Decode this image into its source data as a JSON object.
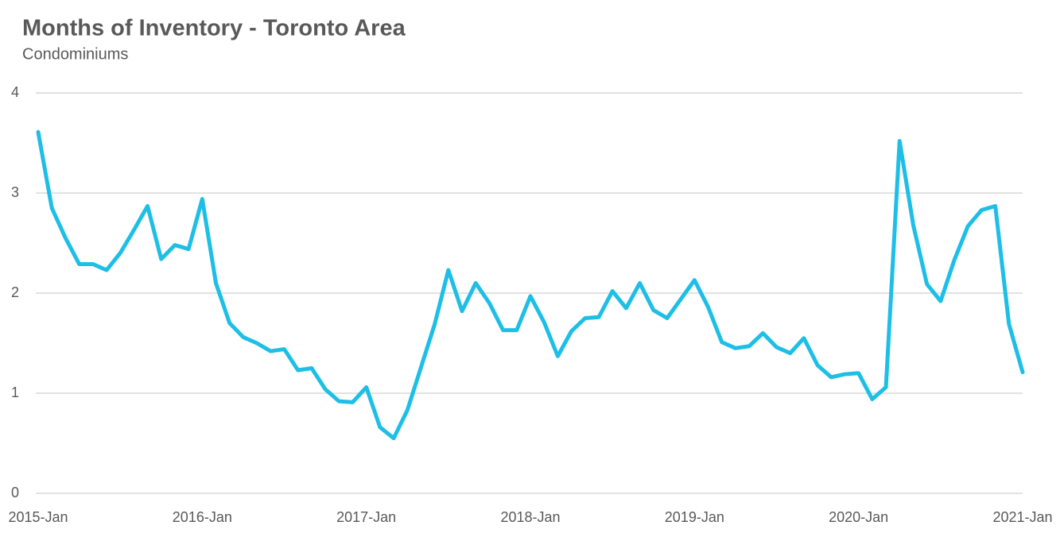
{
  "chart_data": {
    "type": "line",
    "title": "Months of Inventory - Toronto Area",
    "subtitle": "Condominiums",
    "categories": [
      "2015-Jan",
      null,
      null,
      null,
      null,
      null,
      null,
      null,
      null,
      null,
      null,
      null,
      "2016-Jan",
      null,
      null,
      null,
      null,
      null,
      null,
      null,
      null,
      null,
      null,
      null,
      "2017-Jan",
      null,
      null,
      null,
      null,
      null,
      null,
      null,
      null,
      null,
      null,
      null,
      "2018-Jan",
      null,
      null,
      null,
      null,
      null,
      null,
      null,
      null,
      null,
      null,
      null,
      "2019-Jan",
      null,
      null,
      null,
      null,
      null,
      null,
      null,
      null,
      null,
      null,
      null,
      "2020-Jan",
      null,
      null,
      null,
      null,
      null,
      null,
      null,
      null,
      null,
      null,
      null,
      "2021-Jan"
    ],
    "values": [
      3.61,
      2.85,
      2.55,
      2.29,
      2.29,
      2.23,
      2.4,
      2.63,
      2.87,
      2.34,
      2.48,
      2.44,
      2.94,
      2.1,
      1.7,
      1.56,
      1.5,
      1.42,
      1.44,
      1.23,
      1.25,
      1.04,
      0.92,
      0.91,
      1.06,
      0.66,
      0.55,
      0.83,
      1.26,
      1.69,
      2.23,
      1.82,
      2.1,
      1.9,
      1.63,
      1.63,
      1.97,
      1.71,
      1.37,
      1.62,
      1.75,
      1.76,
      2.02,
      1.85,
      2.1,
      1.83,
      1.75,
      1.94,
      2.13,
      1.86,
      1.51,
      1.45,
      1.47,
      1.6,
      1.46,
      1.4,
      1.55,
      1.28,
      1.16,
      1.19,
      1.2,
      0.94,
      1.06,
      3.52,
      2.68,
      2.09,
      1.92,
      2.33,
      2.67,
      2.83,
      2.87,
      1.69,
      1.21
    ],
    "color": "#1dbfe6",
    "ylim": [
      0,
      4
    ],
    "yticks": [
      0,
      1,
      2,
      3,
      4
    ],
    "grid": true
  }
}
